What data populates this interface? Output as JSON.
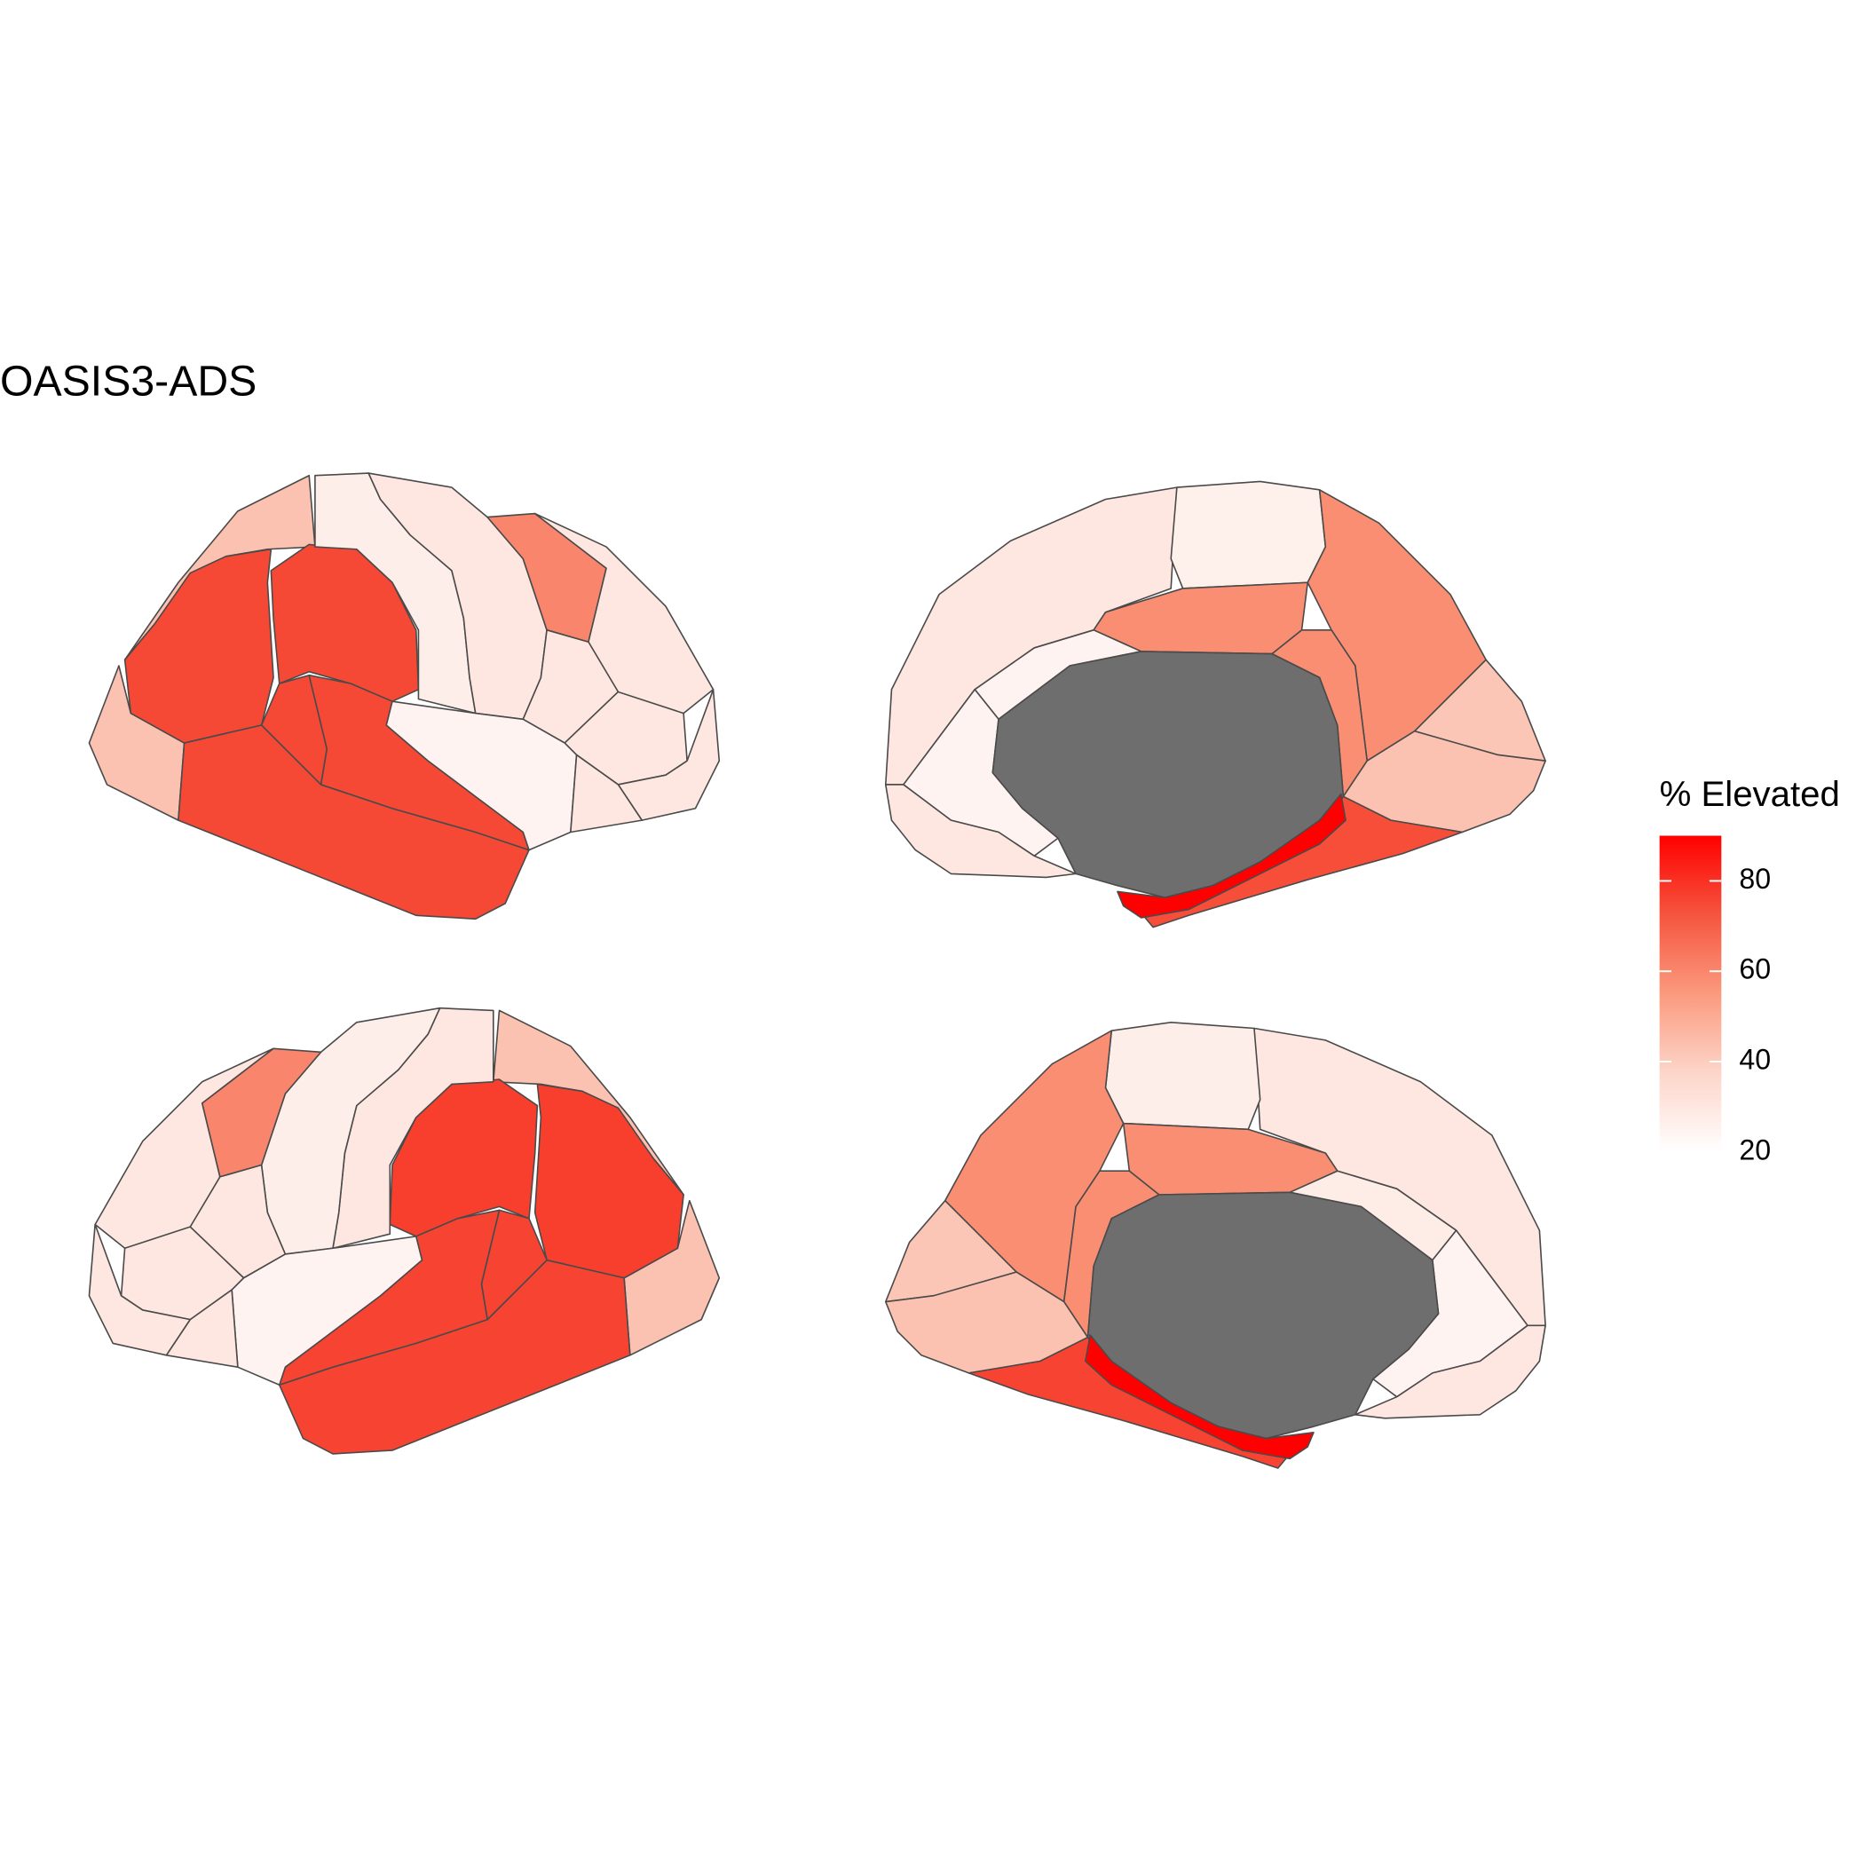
{
  "chart_data": {
    "type": "choropleth",
    "title": "OASIS3-ADS",
    "legend_title": "% Elevated",
    "clim": [
      20,
      90
    ],
    "ticks": [
      20,
      40,
      60,
      80
    ],
    "colors": [
      "#FFFFFF",
      "#FDD5C9",
      "#FB9A7E",
      "#F5553E",
      "#FF0000"
    ],
    "na_color": "#6E6E6E",
    "stroke": "#4A4A4A",
    "views": [
      {
        "values": [
          43,
          43,
          75,
          75,
          75,
          75,
          75,
          27,
          30,
          60,
          30,
          30,
          30,
          25,
          30,
          30
        ]
      },
      {
        "values": [
          30,
          26,
          58,
          58,
          58,
          42,
          43,
          25,
          25,
          30,
          null,
          74,
          90
        ]
      },
      {
        "values": [
          43,
          43,
          77,
          77,
          76,
          76,
          76,
          30,
          27,
          60,
          30,
          30,
          30,
          25,
          30,
          30
        ]
      },
      {
        "values": [
          30,
          27,
          58,
          58,
          58,
          42,
          43,
          28,
          25,
          30,
          null,
          76,
          90
        ]
      }
    ]
  }
}
